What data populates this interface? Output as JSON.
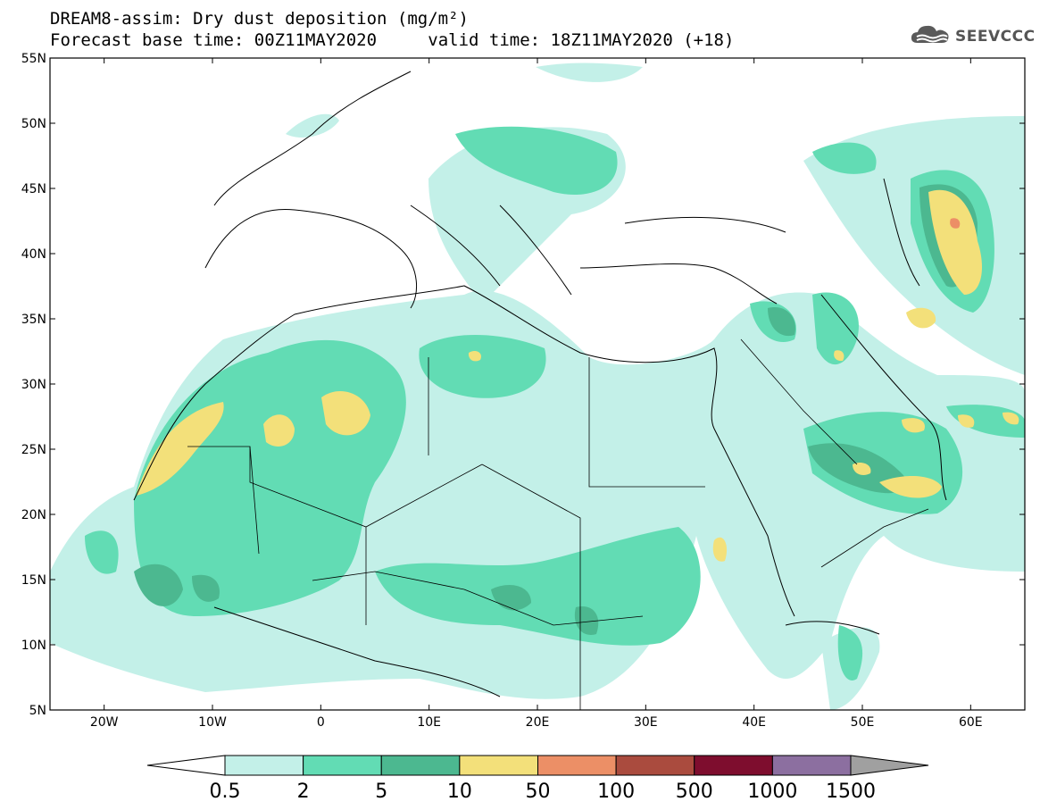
{
  "header": {
    "title": "DREAM8-assim: Dry dust deposition (mg/m²)",
    "base_label": "Forecast base time: 00Z11MAY2020",
    "valid_label": "valid time: 18Z11MAY2020 (+18)"
  },
  "logo": {
    "text": "SEEVCCC",
    "icon": "cloud-icon",
    "color": "#555555"
  },
  "map": {
    "region": "North Africa, Europe and Middle East",
    "projection": "lat-lon",
    "lon_range": [
      -25,
      65
    ],
    "lat_range": [
      5,
      55
    ],
    "lon_ticks": [
      {
        "value": -20,
        "label": "20W"
      },
      {
        "value": -10,
        "label": "10W"
      },
      {
        "value": 0,
        "label": "0"
      },
      {
        "value": 10,
        "label": "10E"
      },
      {
        "value": 20,
        "label": "20E"
      },
      {
        "value": 30,
        "label": "30E"
      },
      {
        "value": 40,
        "label": "40E"
      },
      {
        "value": 50,
        "label": "50E"
      },
      {
        "value": 60,
        "label": "60E"
      }
    ],
    "lat_ticks": [
      {
        "value": 55,
        "label": "55N"
      },
      {
        "value": 50,
        "label": "50N"
      },
      {
        "value": 45,
        "label": "45N"
      },
      {
        "value": 40,
        "label": "40N"
      },
      {
        "value": 35,
        "label": "35N"
      },
      {
        "value": 30,
        "label": "30N"
      },
      {
        "value": 25,
        "label": "25N"
      },
      {
        "value": 20,
        "label": "20N"
      },
      {
        "value": 15,
        "label": "15N"
      },
      {
        "value": 10,
        "label": "10N"
      },
      {
        "value": 5,
        "label": "5N"
      }
    ],
    "grid": false
  },
  "colorbar": {
    "labels": [
      "0.5",
      "2",
      "5",
      "10",
      "50",
      "100",
      "500",
      "1000",
      "1500"
    ],
    "colors": [
      "#c3f0e8",
      "#62dcb4",
      "#4cb890",
      "#f3e07a",
      "#ec8f66",
      "#aa4b3e",
      "#7e0d2e",
      "#8c6fa0"
    ],
    "under_color": "#ffffff",
    "over_color": "#a0a0a0"
  }
}
